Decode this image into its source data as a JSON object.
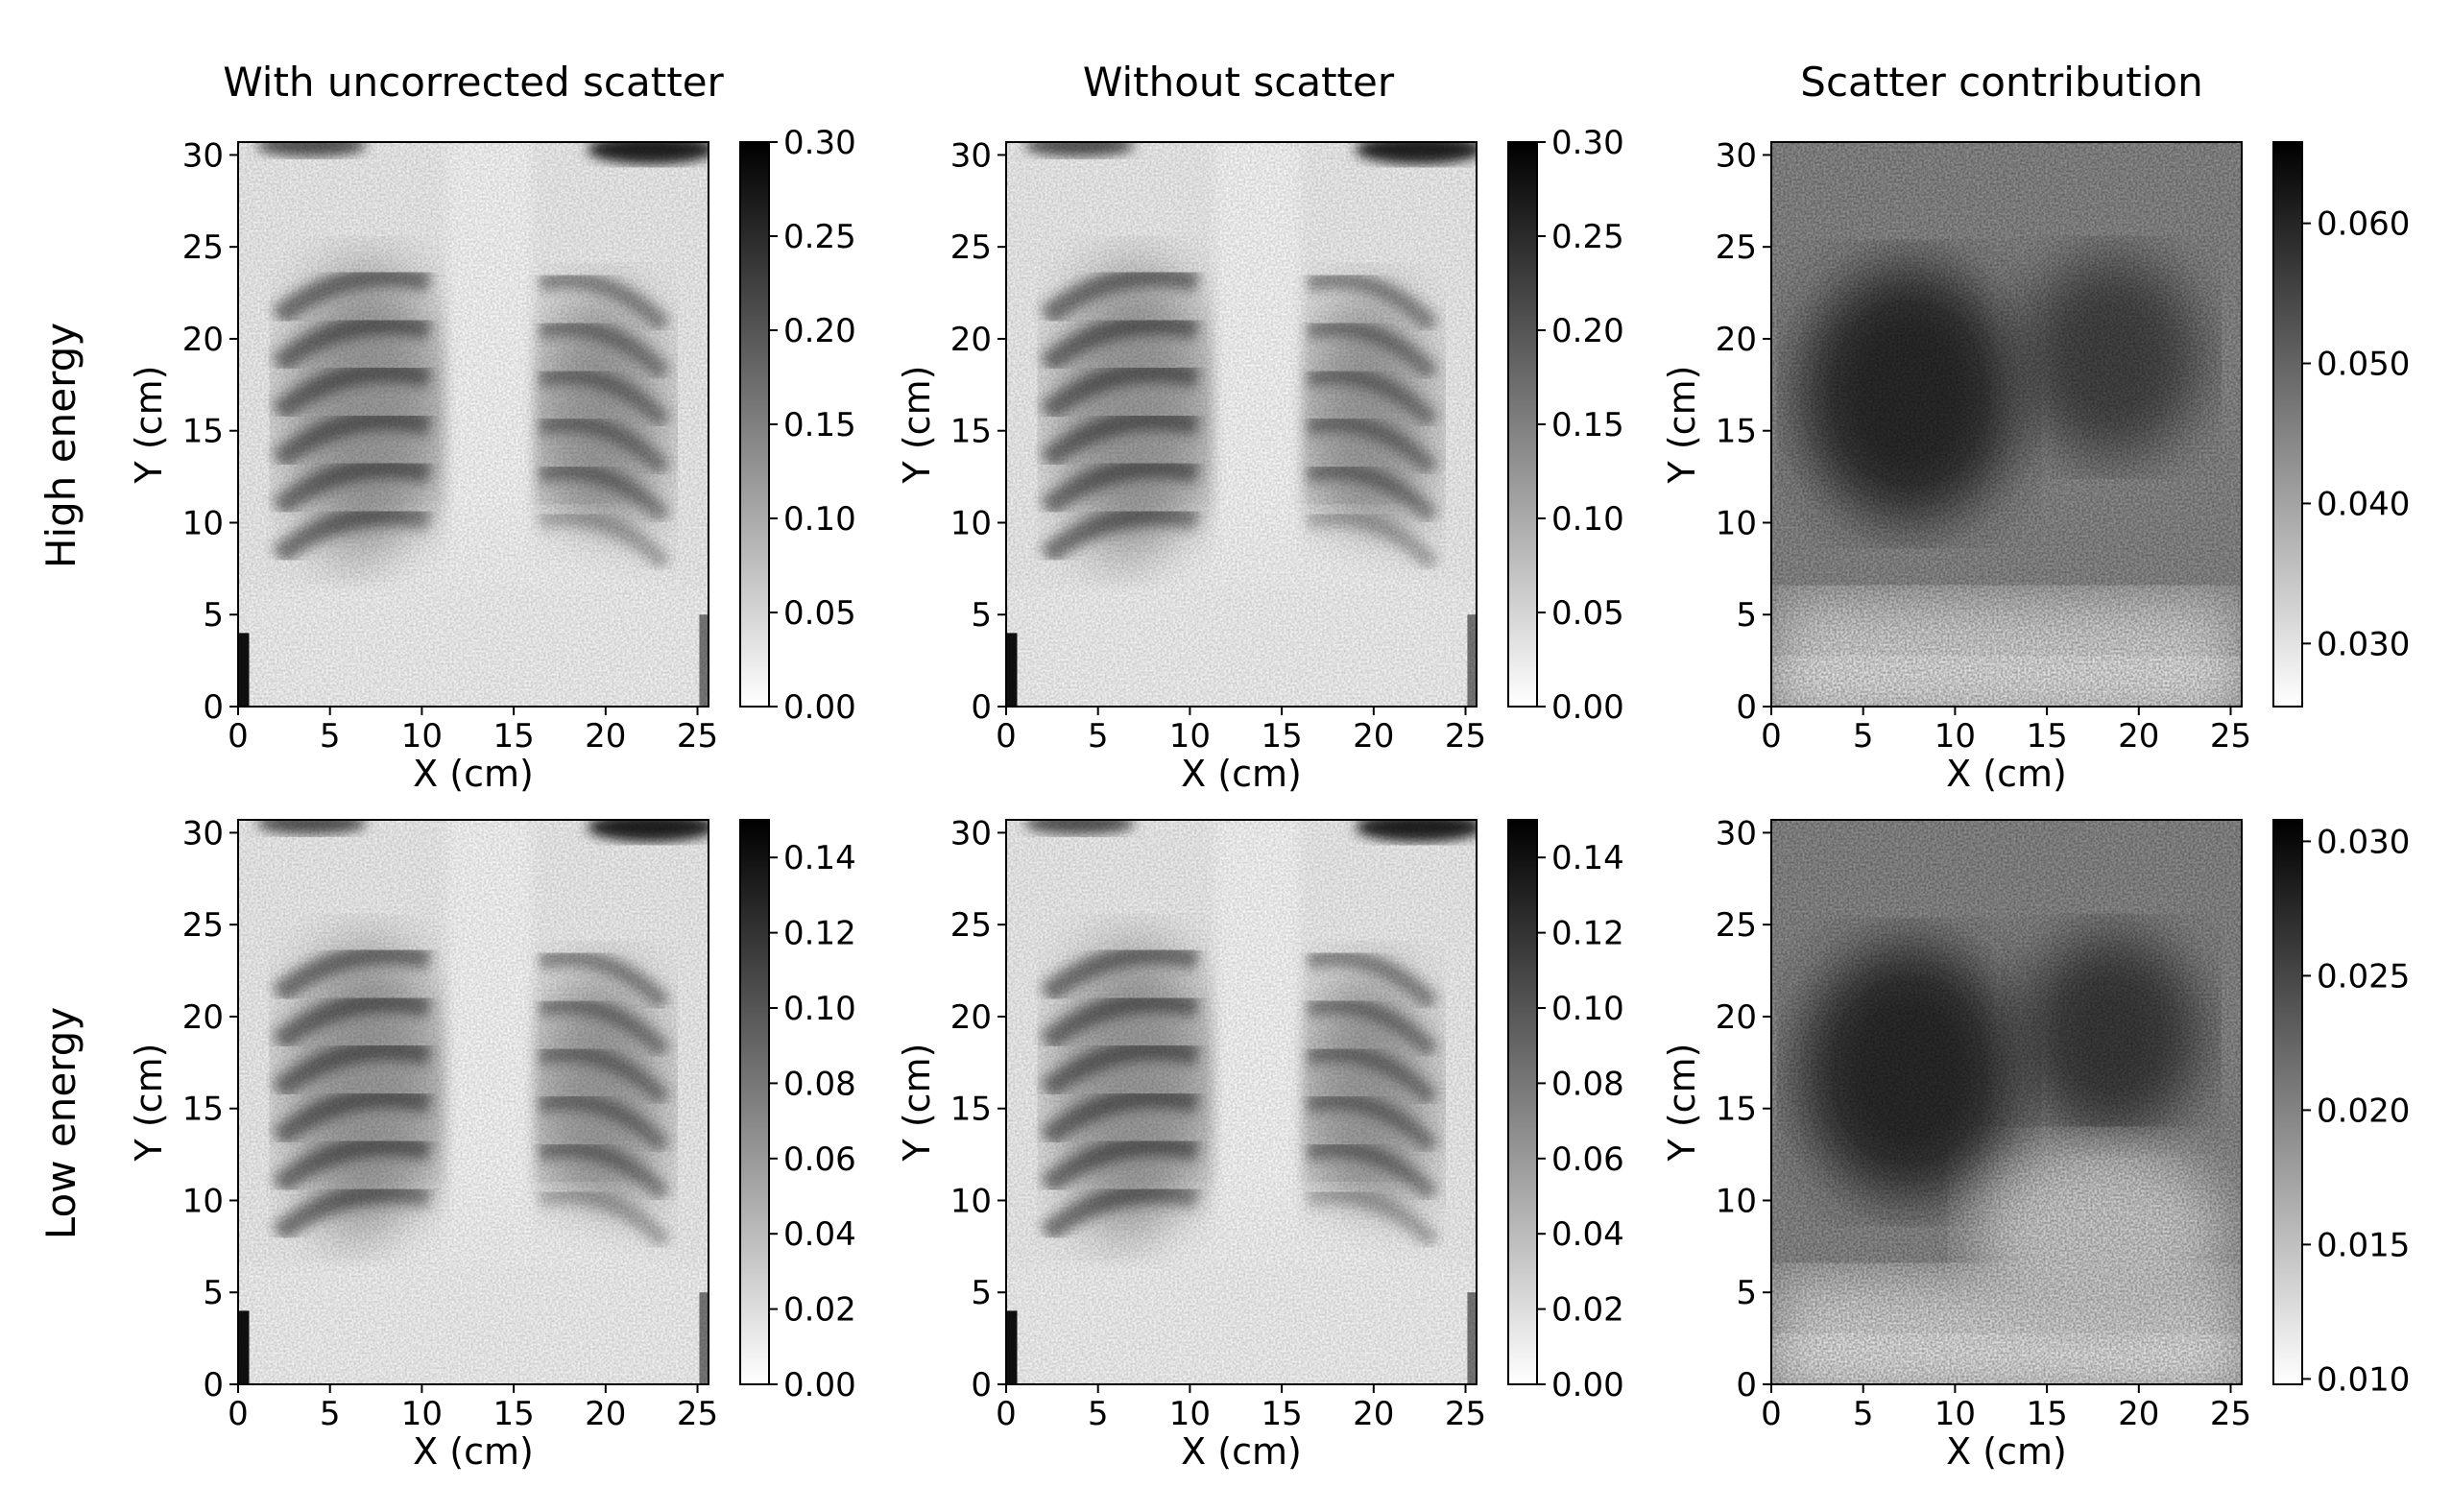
{
  "figure": {
    "column_titles": [
      "With uncorrected scatter",
      "Without scatter",
      "Scatter contribution"
    ],
    "row_labels": [
      "High energy",
      "Low energy"
    ]
  },
  "chart_data": [
    {
      "type": "heatmap",
      "row": "High energy",
      "column": "With uncorrected scatter",
      "xlabel": "X (cm)",
      "ylabel": "Y (cm)",
      "xlim": [
        0,
        25.6
      ],
      "ylim": [
        0,
        30.7
      ],
      "xticks": [
        0,
        5,
        10,
        15,
        20,
        25
      ],
      "yticks": [
        0,
        5,
        10,
        15,
        20,
        25,
        30
      ],
      "colorbar": {
        "min": 0,
        "max": 0.3,
        "ticks": [
          "0.00",
          "0.05",
          "0.10",
          "0.15",
          "0.20",
          "0.25",
          "0.30"
        ]
      },
      "colormap": "gray_r",
      "image": "chest-radiograph"
    },
    {
      "type": "heatmap",
      "row": "High energy",
      "column": "Without scatter",
      "xlabel": "X (cm)",
      "ylabel": "Y (cm)",
      "xlim": [
        0,
        25.6
      ],
      "ylim": [
        0,
        30.7
      ],
      "xticks": [
        0,
        5,
        10,
        15,
        20,
        25
      ],
      "yticks": [
        0,
        5,
        10,
        15,
        20,
        25,
        30
      ],
      "colorbar": {
        "min": 0,
        "max": 0.3,
        "ticks": [
          "0.00",
          "0.05",
          "0.10",
          "0.15",
          "0.20",
          "0.25",
          "0.30"
        ]
      },
      "colormap": "gray_r",
      "image": "chest-radiograph"
    },
    {
      "type": "heatmap",
      "row": "High energy",
      "column": "Scatter contribution",
      "xlabel": "X (cm)",
      "ylabel": "Y (cm)",
      "xlim": [
        0,
        25.6
      ],
      "ylim": [
        0,
        30.7
      ],
      "xticks": [
        0,
        5,
        10,
        15,
        20,
        25
      ],
      "yticks": [
        0,
        5,
        10,
        15,
        20,
        25,
        30
      ],
      "colorbar": {
        "min": 0.0255,
        "max": 0.0658,
        "ticks": [
          "0.030",
          "0.040",
          "0.050",
          "0.060"
        ]
      },
      "colormap": "gray_r",
      "image": "scatter-field"
    },
    {
      "type": "heatmap",
      "row": "Low energy",
      "column": "With uncorrected scatter",
      "xlabel": "X (cm)",
      "ylabel": "Y (cm)",
      "xlim": [
        0,
        25.6
      ],
      "ylim": [
        0,
        30.7
      ],
      "xticks": [
        0,
        5,
        10,
        15,
        20,
        25
      ],
      "yticks": [
        0,
        5,
        10,
        15,
        20,
        25,
        30
      ],
      "colorbar": {
        "min": 0,
        "max": 0.15,
        "ticks": [
          "0.00",
          "0.02",
          "0.04",
          "0.06",
          "0.08",
          "0.10",
          "0.12",
          "0.14"
        ]
      },
      "colormap": "gray_r",
      "image": "chest-radiograph"
    },
    {
      "type": "heatmap",
      "row": "Low energy",
      "column": "Without scatter",
      "xlabel": "X (cm)",
      "ylabel": "Y (cm)",
      "xlim": [
        0,
        25.6
      ],
      "ylim": [
        0,
        30.7
      ],
      "xticks": [
        0,
        5,
        10,
        15,
        20,
        25
      ],
      "yticks": [
        0,
        5,
        10,
        15,
        20,
        25,
        30
      ],
      "colorbar": {
        "min": 0,
        "max": 0.15,
        "ticks": [
          "0.00",
          "0.02",
          "0.04",
          "0.06",
          "0.08",
          "0.10",
          "0.12",
          "0.14"
        ]
      },
      "colormap": "gray_r",
      "image": "chest-radiograph"
    },
    {
      "type": "heatmap",
      "row": "Low energy",
      "column": "Scatter contribution",
      "xlabel": "X (cm)",
      "ylabel": "Y (cm)",
      "xlim": [
        0,
        25.6
      ],
      "ylim": [
        0,
        30.7
      ],
      "xticks": [
        0,
        5,
        10,
        15,
        20,
        25
      ],
      "yticks": [
        0,
        5,
        10,
        15,
        20,
        25,
        30
      ],
      "colorbar": {
        "min": 0.0098,
        "max": 0.0308,
        "ticks": [
          "0.010",
          "0.015",
          "0.020",
          "0.025",
          "0.030"
        ]
      },
      "colormap": "gray_r",
      "image": "scatter-field"
    }
  ]
}
